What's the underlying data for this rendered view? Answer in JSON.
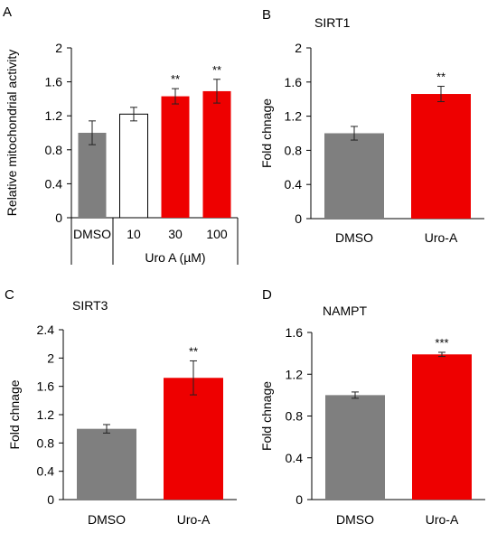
{
  "colors": {
    "gray": "#7f7f7f",
    "red": "#ee0000",
    "white": "#ffffff",
    "axis": "#000000"
  },
  "chart_data": [
    {
      "id": "A",
      "type": "bar",
      "panel_label": "A",
      "title": "",
      "ylabel": "Relative mitochondrial activity",
      "xlabel": "Uro A (µM)",
      "categories": [
        "DMSO",
        "10",
        "30",
        "100"
      ],
      "values": [
        1.0,
        1.22,
        1.43,
        1.49
      ],
      "errors": [
        0.14,
        0.08,
        0.09,
        0.14
      ],
      "colors": [
        "gray",
        "white",
        "red",
        "red"
      ],
      "significance": [
        "",
        "",
        "**",
        "**"
      ],
      "ylim": [
        0,
        2
      ],
      "yticks": [
        "0",
        "0.4",
        "0.8",
        "1.2",
        "1.6",
        "2"
      ]
    },
    {
      "id": "B",
      "type": "bar",
      "panel_label": "B",
      "title": "SIRT1",
      "ylabel": "Fold chnage",
      "xlabel": "",
      "categories": [
        "DMSO",
        "Uro-A"
      ],
      "values": [
        1.0,
        1.46
      ],
      "errors": [
        0.08,
        0.09
      ],
      "colors": [
        "gray",
        "red"
      ],
      "significance": [
        "",
        "**"
      ],
      "ylim": [
        0,
        2
      ],
      "yticks": [
        "0",
        "0.4",
        "0.8",
        "1.2",
        "1.6",
        "2"
      ]
    },
    {
      "id": "C",
      "type": "bar",
      "panel_label": "C",
      "title": "SIRT3",
      "ylabel": "Fold chnage",
      "xlabel": "",
      "categories": [
        "DMSO",
        "Uro-A"
      ],
      "values": [
        1.0,
        1.72
      ],
      "errors": [
        0.06,
        0.24
      ],
      "colors": [
        "gray",
        "red"
      ],
      "significance": [
        "",
        "**"
      ],
      "ylim": [
        0,
        2.4
      ],
      "yticks": [
        "0",
        "0.4",
        "0.8",
        "1.2",
        "1.6",
        "2",
        "2.4"
      ]
    },
    {
      "id": "D",
      "type": "bar",
      "panel_label": "D",
      "title": "NAMPT",
      "ylabel": "Fold chnage",
      "xlabel": "",
      "categories": [
        "DMSO",
        "Uro-A"
      ],
      "values": [
        1.0,
        1.39
      ],
      "errors": [
        0.03,
        0.02
      ],
      "colors": [
        "gray",
        "red"
      ],
      "significance": [
        "",
        "***"
      ],
      "ylim": [
        0,
        1.6
      ],
      "yticks": [
        "0",
        "0.4",
        "0.8",
        "1.2",
        "1.6"
      ]
    }
  ]
}
